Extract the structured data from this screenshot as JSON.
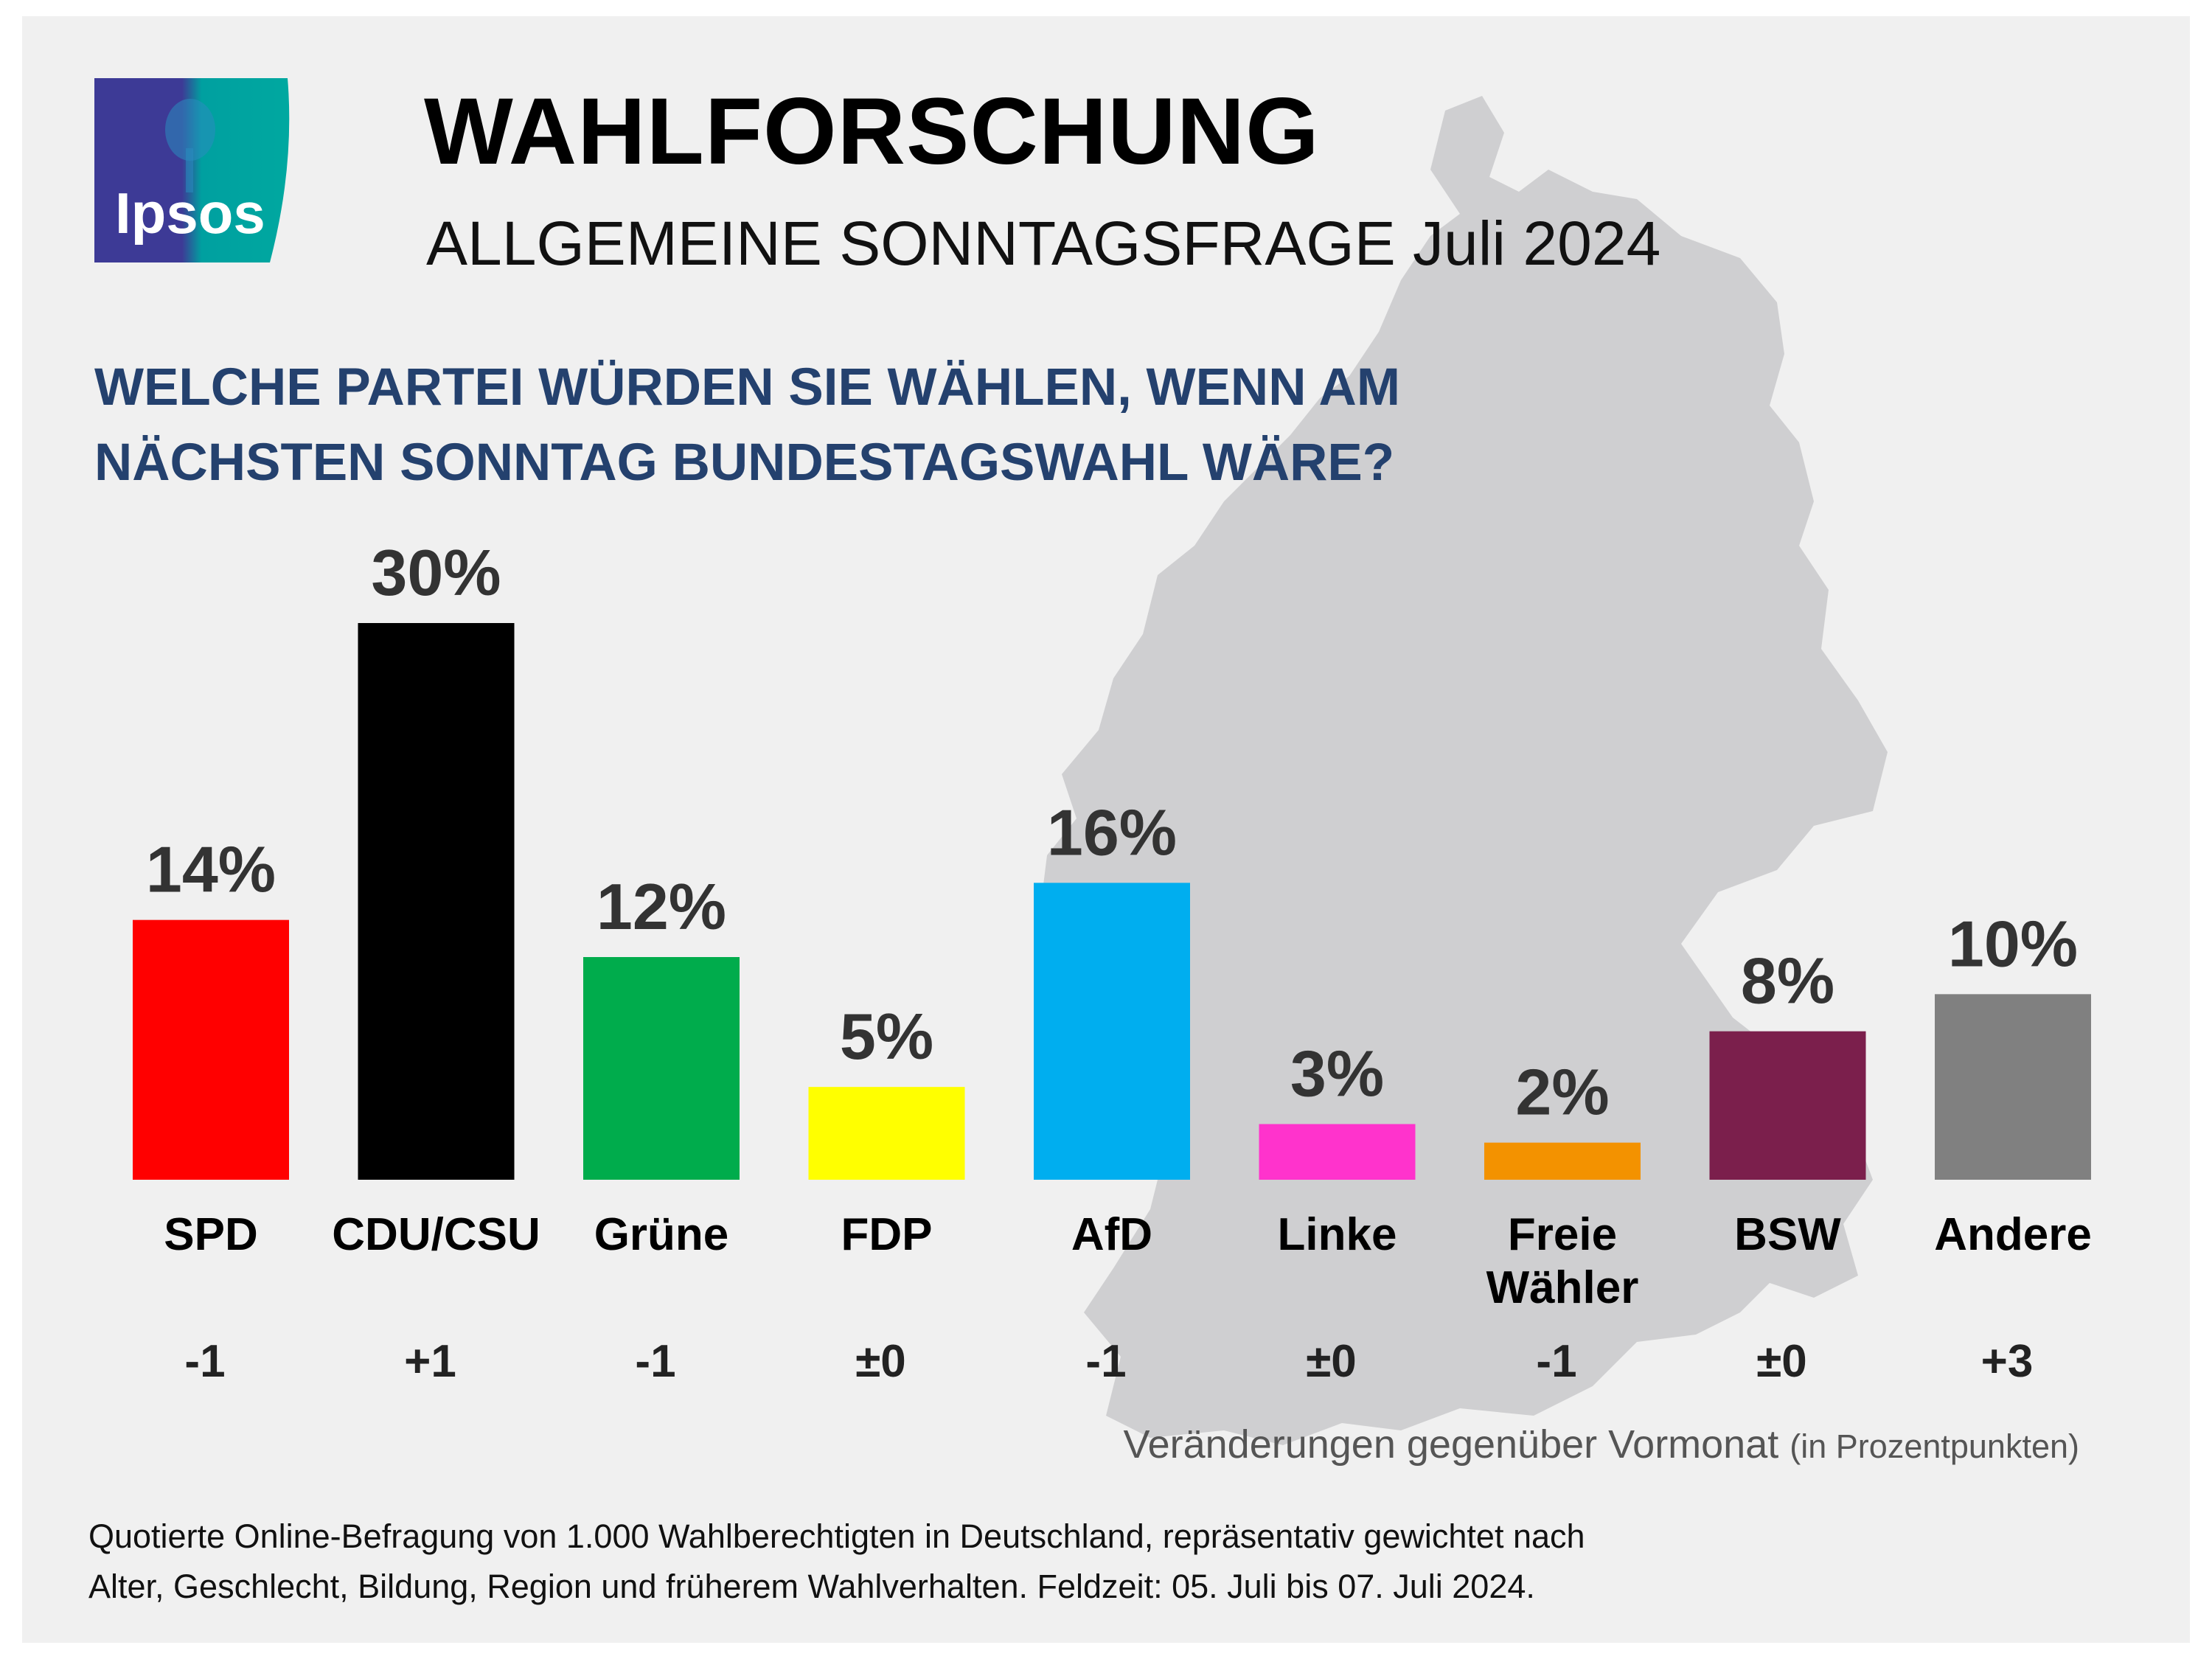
{
  "header": {
    "logo_text": "Ipsos",
    "title": "WAHLFORSCHUNG",
    "subtitle": "ALLGEMEINE SONNTAGSFRAGE Juli 2024"
  },
  "question": "WELCHE PARTEI WÜRDEN SIE WÄHLEN, WENN AM NÄCHSTEN SONNTAG BUNDESTAGSWAHL WÄRE?",
  "chart_data": {
    "type": "bar",
    "categories": [
      "SPD",
      "CDU/CSU",
      "Grüne",
      "FDP",
      "AfD",
      "Linke",
      "Freie Wähler",
      "BSW",
      "Andere"
    ],
    "category_lines": [
      [
        "SPD"
      ],
      [
        "CDU/CSU"
      ],
      [
        "Grüne"
      ],
      [
        "FDP"
      ],
      [
        "AfD"
      ],
      [
        "Linke"
      ],
      [
        "Freie",
        "Wähler"
      ],
      [
        "BSW"
      ],
      [
        "Andere"
      ]
    ],
    "values": [
      14,
      30,
      12,
      5,
      16,
      3,
      2,
      8,
      10
    ],
    "value_labels": [
      "14%",
      "30%",
      "12%",
      "5%",
      "16%",
      "3%",
      "2%",
      "8%",
      "10%"
    ],
    "changes": [
      "-1",
      "+1",
      "-1",
      "±0",
      "-1",
      "±0",
      "-1",
      "±0",
      "+3"
    ],
    "colors": [
      "#ff0000",
      "#000000",
      "#00ac4c",
      "#ffff00",
      "#00aeef",
      "#ff33cc",
      "#f39200",
      "#7b1f4c",
      "#808080"
    ],
    "ylim": [
      0,
      30
    ]
  },
  "change_note": {
    "main": "Veränderungen gegenüber Vormonat",
    "detail": "(in Prozentpunkten)"
  },
  "footnote": {
    "line1": "Quotierte Online-Befragung von 1.000 Wahlberechtigten in Deutschland, repräsentativ gewichtet nach",
    "line2": "Alter, Geschlecht, Bildung, Region und früherem Wahlverhalten. Feldzeit: 05. Juli bis 07. Juli 2024."
  },
  "colors": {
    "background": "#f0f0f0",
    "question": "#24416e",
    "map": "#cfcfd1",
    "logo_blue": "#3d3a96",
    "logo_teal": "#00a0a0"
  }
}
